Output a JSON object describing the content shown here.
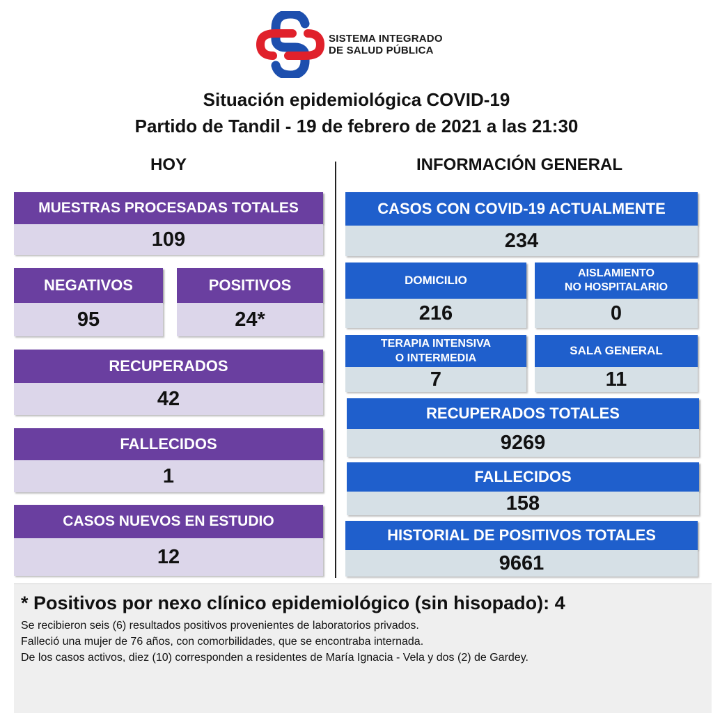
{
  "header": {
    "logo_line1": "SISTEMA INTEGRADO",
    "logo_line2": "DE SALUD PÚBLICA",
    "title_line1": "Situación epidemiológica COVID-19",
    "title_line2": "Partido de Tandil - 19 de febrero de 2021 a las 21:30",
    "colors": {
      "logo_red": "#e0212b",
      "logo_blue": "#1d4fae"
    }
  },
  "hoy": {
    "heading": "HOY",
    "muestras": {
      "label": "MUESTRAS PROCESADAS TOTALES",
      "value": "109"
    },
    "negativos": {
      "label": "NEGATIVOS",
      "value": "95"
    },
    "positivos": {
      "label": "POSITIVOS",
      "value": "24*"
    },
    "recuperados": {
      "label": "RECUPERADOS",
      "value": "42"
    },
    "fallecidos": {
      "label": "FALLECIDOS",
      "value": "1"
    },
    "casos_nuevos": {
      "label": "CASOS NUEVOS EN ESTUDIO",
      "value": "12"
    },
    "color": "#6a3fa0"
  },
  "general": {
    "heading": "INFORMACIÓN GENERAL",
    "casos_actuales": {
      "label": "CASOS CON COVID-19 ACTUALMENTE",
      "value": "234"
    },
    "domicilio": {
      "label": "DOMICILIO",
      "value": "216"
    },
    "aislamiento": {
      "label_line1": "AISLAMIENTO",
      "label_line2": "NO HOSPITALARIO",
      "value": "0"
    },
    "terapia": {
      "label_line1": "TERAPIA INTENSIVA",
      "label_line2": "O INTERMEDIA",
      "value": "7"
    },
    "sala_general": {
      "label": "SALA GENERAL",
      "value": "11"
    },
    "recuperados_totales": {
      "label": "RECUPERADOS TOTALES",
      "value": "9269"
    },
    "fallecidos": {
      "label": "FALLECIDOS",
      "value": "158"
    },
    "historial": {
      "label": "HISTORIAL DE POSITIVOS TOTALES",
      "value": "9661"
    },
    "color": "#1f5fcc"
  },
  "notes": {
    "main": "* Positivos por nexo clínico epidemiológico (sin hisopado): 4",
    "lines": [
      "Se recibieron seis (6) resultados positivos provenientes de laboratorios privados.",
      "Falleció una mujer de 76 años, con comorbilidades, que se encontraba internada.",
      "De los casos activos, diez (10) corresponden a residentes de María Ignacia - Vela y dos (2) de Gardey."
    ]
  }
}
